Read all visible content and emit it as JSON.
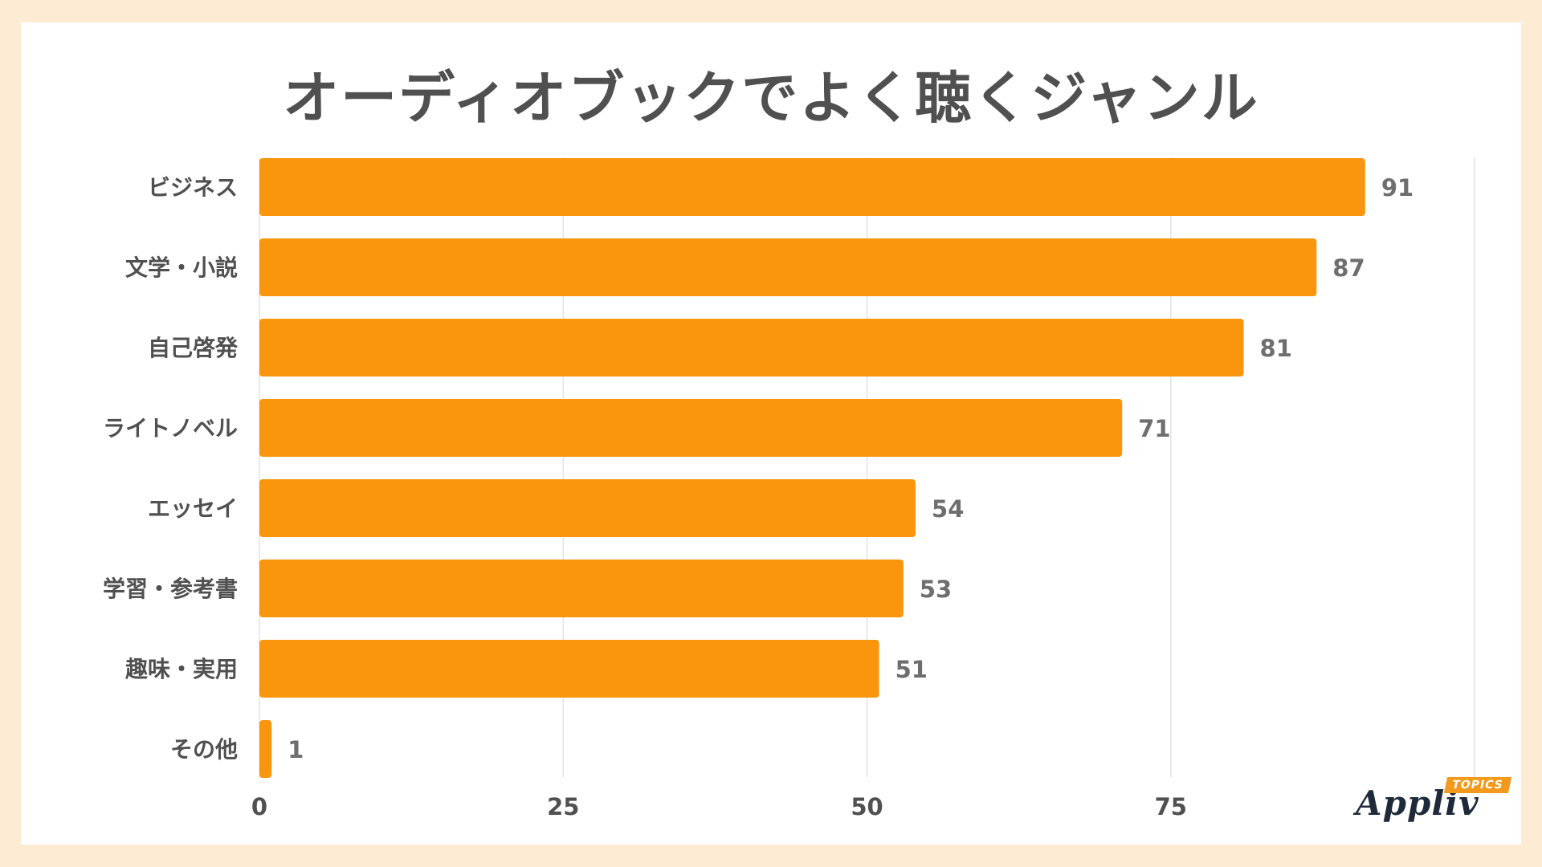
{
  "colors": {
    "background": "#fdebd3",
    "bar": "#f9960e",
    "grid": "#e3e3e3"
  },
  "logo": {
    "word": "Appliv",
    "badge": "TOPICS"
  },
  "chart_data": {
    "type": "bar",
    "orientation": "horizontal",
    "title": "オーディオブックでよく聴くジャンル",
    "categories": [
      "ビジネス",
      "文学・小説",
      "自己啓発",
      "ライトノベル",
      "エッセイ",
      "学習・参考書",
      "趣味・実用",
      "その他"
    ],
    "values": [
      91,
      87,
      81,
      71,
      54,
      53,
      51,
      1
    ],
    "xlim": [
      0,
      100
    ],
    "xticks": [
      0,
      25,
      50,
      75
    ],
    "grid": true,
    "xlabel": "",
    "ylabel": ""
  }
}
